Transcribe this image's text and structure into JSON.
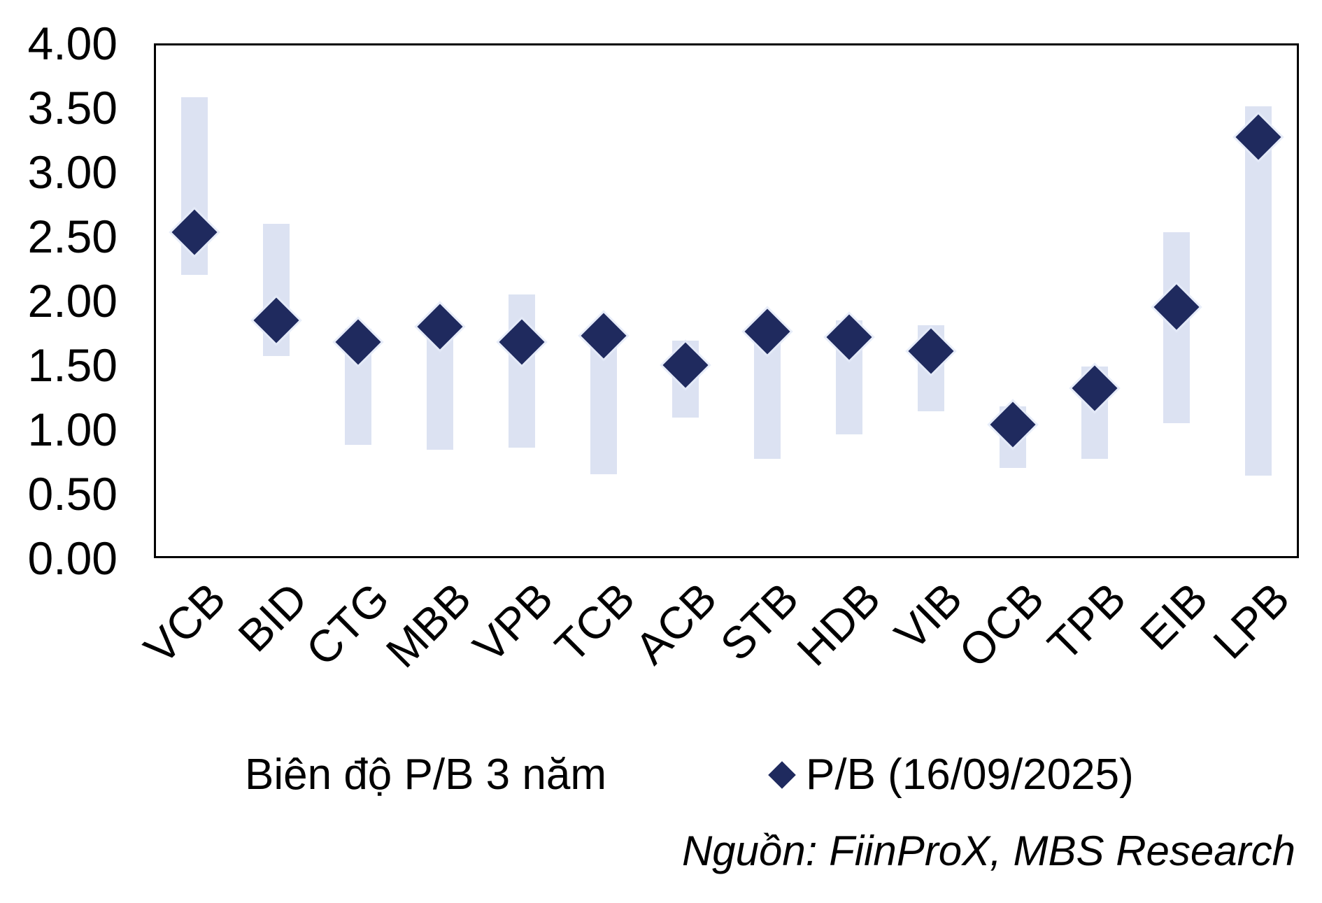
{
  "chart_data": {
    "type": "bar",
    "subtype": "floating-range-bars-with-diamond-markers",
    "title": "",
    "xlabel": "",
    "ylabel": "",
    "categories": [
      "VCB",
      "BID",
      "CTG",
      "MBB",
      "VPB",
      "TCB",
      "ACB",
      "STB",
      "HDB",
      "VIB",
      "OCB",
      "TPB",
      "EIB",
      "LPB"
    ],
    "series": [
      {
        "name": "Biên độ P/B 3 năm",
        "role": "range",
        "low": [
          2.2,
          1.57,
          0.88,
          0.84,
          0.86,
          0.65,
          1.09,
          0.77,
          0.96,
          1.14,
          0.7,
          0.77,
          1.05,
          0.64
        ],
        "high": [
          3.58,
          2.6,
          1.78,
          1.86,
          2.05,
          1.8,
          1.69,
          1.83,
          1.85,
          1.81,
          1.18,
          1.49,
          2.53,
          3.51
        ]
      },
      {
        "name": "P/B (16/09/2025)",
        "role": "marker",
        "values": [
          2.53,
          1.85,
          1.68,
          1.8,
          1.68,
          1.73,
          1.5,
          1.76,
          1.72,
          1.61,
          1.04,
          1.32,
          1.95,
          3.27
        ]
      }
    ],
    "ylim": [
      0,
      4
    ],
    "ytick_step": 0.5,
    "ytick_labels": [
      "0.00",
      "0.50",
      "1.00",
      "1.50",
      "2.00",
      "2.50",
      "3.00",
      "3.50",
      "4.00"
    ],
    "grid": "off",
    "legend_position": "bottom"
  },
  "legend": {
    "range_label": "Biên độ P/B 3 năm",
    "marker_label": "P/B (16/09/2025)"
  },
  "source_note": "Nguồn: FiinProX, MBS Research",
  "colors": {
    "range_bar": "#DCE2F2",
    "marker": "#1F2A5E",
    "axis_border": "#000000",
    "text": "#000000",
    "background": "#FFFFFF"
  }
}
